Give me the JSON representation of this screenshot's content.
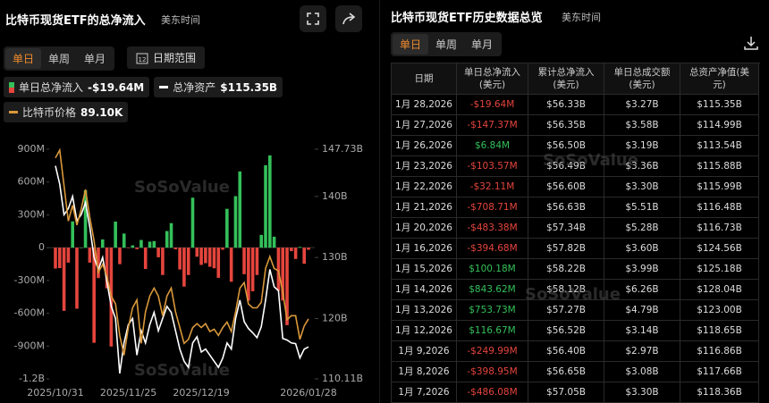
{
  "left_panel": {
    "title": "比特币现货ETF的总净流入",
    "timezone": "美东时间",
    "tabs": [
      "单日",
      "单周",
      "单月"
    ],
    "date_range": "日期范围",
    "legend_values": [
      "-$19.64M",
      "$115.35B",
      "89.10K"
    ]
  },
  "watermark": "SoSoValue",
  "chart_data": {
    "type": "bar-line",
    "x": [
      "2025/10/31",
      null,
      null,
      null,
      null,
      null,
      null,
      null,
      null,
      null,
      null,
      null,
      null,
      null,
      null,
      null,
      null,
      "2025/11/25",
      null,
      null,
      null,
      null,
      null,
      null,
      null,
      null,
      null,
      null,
      null,
      null,
      null,
      null,
      null,
      null,
      "2025/12/19",
      null,
      null,
      null,
      null,
      null,
      null,
      null,
      null,
      null,
      null,
      null,
      null,
      null,
      null,
      null,
      null,
      null,
      null,
      null,
      null,
      null,
      null,
      null,
      null,
      "2026/01/28"
    ],
    "series": [
      {
        "name": "单日总净流入",
        "positive_color": "#34c05a",
        "negative_color": "#e5453d",
        "values": [
          -191,
          -187,
          -578,
          -137,
          240,
          -558,
          1,
          524,
          -137,
          -870,
          -278,
          75,
          -372,
          -904,
          238,
          -151,
          129,
          -3,
          21,
          -14,
          70,
          -195,
          55,
          60,
          -88,
          -250,
          152,
          224,
          -15,
          -200,
          -356,
          -250,
          457,
          -83,
          -158,
          -142,
          -175,
          -189,
          -276,
          -19,
          355,
          -312,
          471,
          697,
          -243,
          -486.08,
          -398.95,
          -249.99,
          116.67,
          753.73,
          843.62,
          100.18,
          -394.68,
          -483.38,
          -708.71,
          -32.11,
          -103.57,
          6.84,
          -147.37,
          -19.64
        ]
      },
      {
        "name": "总净资产",
        "color": "#ffffff",
        "axis": "y2",
        "values": [
          145,
          142,
          137,
          138,
          140,
          136,
          137,
          139,
          135,
          130,
          128,
          130,
          126,
          122,
          120,
          111,
          116,
          119,
          120,
          114,
          118,
          116,
          119,
          121,
          118,
          120,
          122,
          121,
          118,
          115,
          113,
          112,
          116,
          117,
          114.5,
          115,
          114,
          113,
          112,
          113.5,
          116,
          115,
          120,
          123,
          119.5,
          118.36,
          117.66,
          116.86,
          118.65,
          123.0,
          128.04,
          125.18,
          124.56,
          116.73,
          116.48,
          115.99,
          115.88,
          113.54,
          114.99,
          115.35
        ]
      },
      {
        "name": "比特币价格",
        "color": "#d9983a",
        "axis": "y3",
        "values": [
          109.5,
          110.5,
          106,
          101.5,
          103.5,
          101,
          103,
          105.5,
          102,
          99,
          95,
          96,
          94.5,
          92,
          91,
          87,
          84.5,
          88,
          90.5,
          91.5,
          86,
          90,
          92,
          93,
          92,
          89.5,
          92,
          93,
          90,
          88,
          86,
          86.5,
          88,
          88.5,
          88,
          88.5,
          87.5,
          87.8,
          87,
          88,
          88.7,
          87.5,
          90,
          93,
          93.7,
          91,
          90.5,
          90.5,
          91.2,
          95.5,
          97,
          95.5,
          95.2,
          92.5,
          89,
          89.5,
          89.5,
          86.5,
          88.2,
          89.1
        ]
      }
    ],
    "ylim": [
      -1200,
      900
    ],
    "yticks": [
      {
        "value": 900,
        "label": "900M"
      },
      {
        "value": 600,
        "label": "600M"
      },
      {
        "value": 300,
        "label": "300M"
      },
      0,
      {
        "value": -300,
        "label": "-300M"
      },
      {
        "value": -600,
        "label": "-600M"
      },
      {
        "value": -900,
        "label": "-900M"
      },
      {
        "value": -1200,
        "label": "-1.2B"
      }
    ],
    "y2lim": [
      110.11,
      147.73
    ],
    "y2ticks": [
      {
        "value": 147.73,
        "label": "147.73B"
      },
      {
        "value": 140,
        "label": "140B"
      },
      {
        "value": 130,
        "label": "130B"
      },
      {
        "value": 120,
        "label": "120B"
      },
      {
        "value": 110.11,
        "label": "110.11B"
      }
    ],
    "y3lim": [
      81.5,
      110.6
    ]
  },
  "right_panel": {
    "title": "比特币现货ETF历史数据总览",
    "timezone": "美东时间",
    "tabs": [
      "单日",
      "单周",
      "单月"
    ]
  },
  "table": {
    "columns": [
      "日期",
      "单日总净流入\n(美元)",
      "累计总净流入\n(美元)",
      "单日总成交额\n(美元)",
      "总资产净值(美\n元)"
    ],
    "rows": [
      [
        "1月 28,2026",
        "-$19.64M",
        "$56.33B",
        "$3.27B",
        "$115.35B"
      ],
      [
        "1月 27,2026",
        "-$147.37M",
        "$56.35B",
        "$3.58B",
        "$114.99B"
      ],
      [
        "1月 26,2026",
        "$6.84M",
        "$56.50B",
        "$3.19B",
        "$113.54B"
      ],
      [
        "1月 23,2026",
        "-$103.57M",
        "$56.49B",
        "$3.36B",
        "$115.88B"
      ],
      [
        "1月 22,2026",
        "-$32.11M",
        "$56.60B",
        "$3.30B",
        "$115.99B"
      ],
      [
        "1月 21,2026",
        "-$708.71M",
        "$56.63B",
        "$5.51B",
        "$116.48B"
      ],
      [
        "1月 20,2026",
        "-$483.38M",
        "$57.34B",
        "$5.28B",
        "$116.73B"
      ],
      [
        "1月 16,2026",
        "-$394.68M",
        "$57.82B",
        "$3.60B",
        "$124.56B"
      ],
      [
        "1月 15,2026",
        "$100.18M",
        "$58.22B",
        "$3.99B",
        "$125.18B"
      ],
      [
        "1月 14,2026",
        "$843.62M",
        "$58.12B",
        "$6.26B",
        "$128.04B"
      ],
      [
        "1月 13,2026",
        "$753.73M",
        "$57.27B",
        "$4.79B",
        "$123.00B"
      ],
      [
        "1月 12,2026",
        "$116.67M",
        "$56.52B",
        "$3.14B",
        "$118.65B"
      ],
      [
        "1月 9,2026",
        "-$249.99M",
        "$56.40B",
        "$2.97B",
        "$116.86B"
      ],
      [
        "1月 8,2026",
        "-$398.95M",
        "$56.65B",
        "$3.08B",
        "$117.66B"
      ],
      [
        "1月 7,2026",
        "-$486.08M",
        "$57.05B",
        "$3.30B",
        "$118.36B"
      ]
    ]
  }
}
